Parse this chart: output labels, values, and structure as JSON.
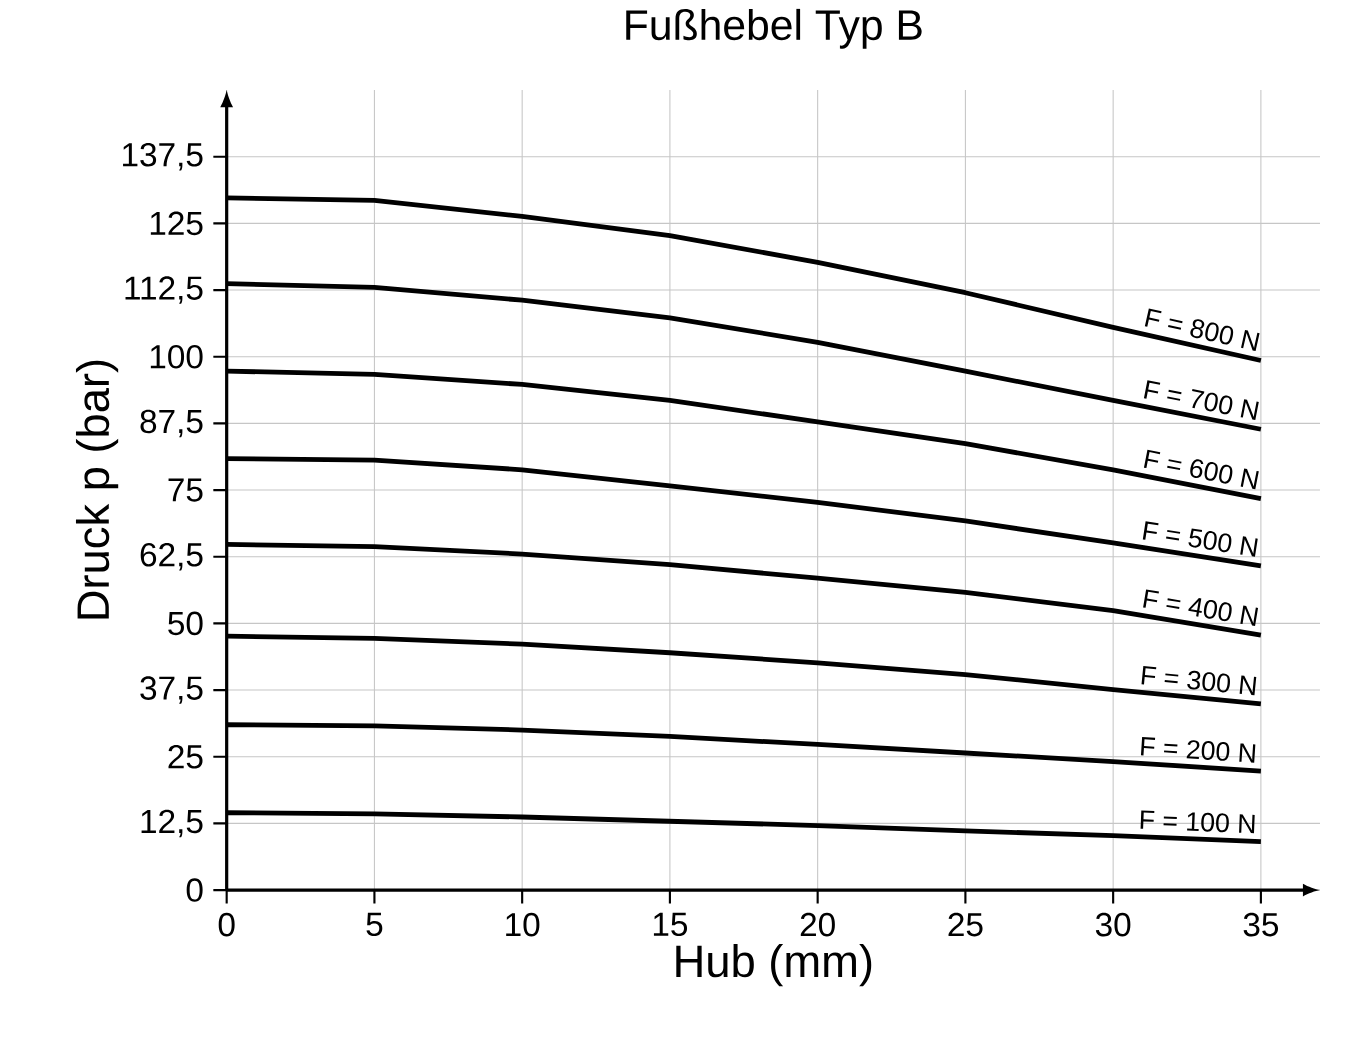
{
  "chart_data": {
    "type": "line",
    "title": "Fußhebel Typ B",
    "xlabel": "Hub (mm)",
    "ylabel": "Druck p (bar)",
    "x": [
      0,
      5,
      10,
      15,
      20,
      25,
      30,
      35
    ],
    "xlim": [
      0,
      37
    ],
    "ylim": [
      0,
      150
    ],
    "xticks": [
      0,
      5,
      10,
      15,
      20,
      25,
      30,
      35
    ],
    "yticks": [
      0,
      {
        "value": 12.5,
        "label": "12,5"
      },
      25,
      {
        "value": 37.5,
        "label": "37,5"
      },
      50,
      {
        "value": 62.5,
        "label": "62,5"
      },
      75,
      {
        "value": 87.5,
        "label": "87,5"
      },
      100,
      {
        "value": 112.5,
        "label": "112,5"
      },
      125,
      {
        "value": 137.5,
        "label": "137,5"
      }
    ],
    "grid": true,
    "series": [
      {
        "name": "F = 800 N",
        "color": "#000000",
        "values": [
          129.8,
          129.3,
          126.3,
          122.7,
          117.7,
          112,
          105.5,
          99.3
        ]
      },
      {
        "name": "F = 700 N",
        "color": "#000000",
        "values": [
          113.7,
          113,
          110.6,
          107.3,
          102.7,
          97.3,
          91.8,
          86.4
        ]
      },
      {
        "name": "F = 600 N",
        "color": "#000000",
        "values": [
          97.3,
          96.7,
          94.8,
          91.8,
          87.8,
          83.7,
          78.8,
          73.4
        ]
      },
      {
        "name": "F = 500 N",
        "color": "#000000",
        "values": [
          80.9,
          80.6,
          78.8,
          75.8,
          72.7,
          69.2,
          65.1,
          60.8
        ]
      },
      {
        "name": "F = 400 N",
        "color": "#000000",
        "values": [
          64.8,
          64.4,
          63,
          61,
          58.5,
          55.8,
          52.4,
          47.8
        ]
      },
      {
        "name": "F = 300 N",
        "color": "#000000",
        "values": [
          47.6,
          47.2,
          46.1,
          44.5,
          42.6,
          40.4,
          37.6,
          34.9
        ]
      },
      {
        "name": "F = 200 N",
        "color": "#000000",
        "values": [
          31,
          30.8,
          30,
          28.8,
          27.3,
          25.7,
          24.1,
          22.3
        ]
      },
      {
        "name": "F = 100 N",
        "color": "#000000",
        "values": [
          14.5,
          14.3,
          13.7,
          12.9,
          12.1,
          11.1,
          10.2,
          9.1
        ]
      }
    ]
  }
}
